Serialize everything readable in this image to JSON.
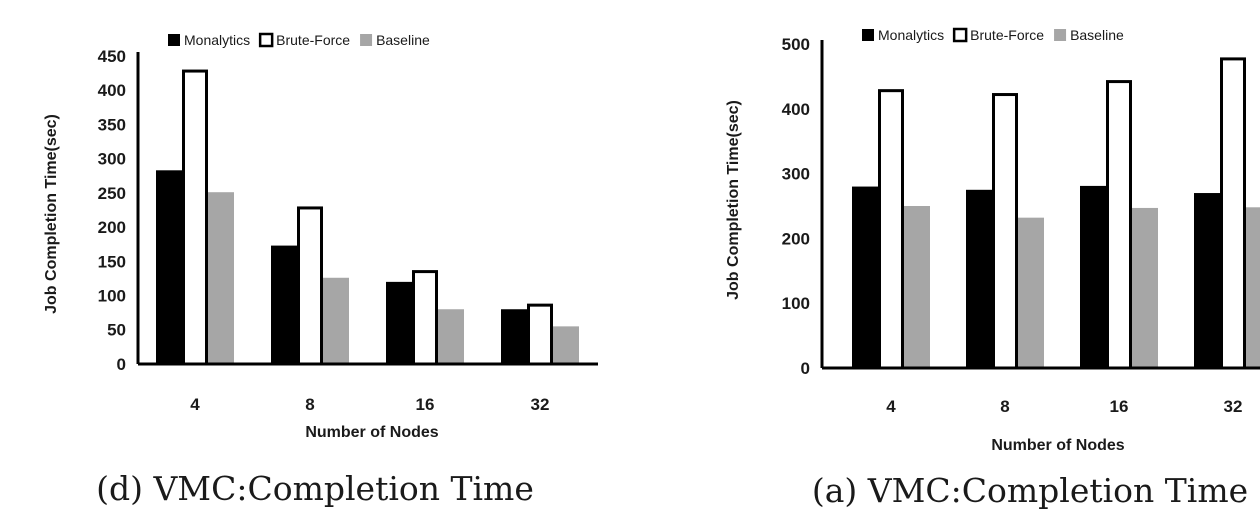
{
  "chart_data": [
    {
      "type": "bar",
      "caption": "(d) VMC:Completion Time",
      "xlabel": "Number of Nodes",
      "ylabel": "Job Completion Time(sec)",
      "categories": [
        "4",
        "8",
        "16",
        "32"
      ],
      "ylim": [
        0,
        450
      ],
      "yticks": [
        0,
        50,
        100,
        150,
        200,
        250,
        300,
        350,
        400,
        450
      ],
      "legend_position": "top",
      "series": [
        {
          "name": "Monalytics",
          "values": [
            283,
            173,
            120,
            80
          ],
          "color": "#000000"
        },
        {
          "name": "Brute-Force",
          "values": [
            428,
            228,
            135,
            86
          ],
          "color": "#ffffff"
        },
        {
          "name": "Baseline",
          "values": [
            251,
            126,
            80,
            55
          ],
          "color": "#a6a6a6"
        }
      ]
    },
    {
      "type": "bar",
      "caption": "(a) VMC:Completion Time",
      "xlabel": "Number of Nodes",
      "ylabel": "Job Completion Time(sec)",
      "categories": [
        "4",
        "8",
        "16",
        "32"
      ],
      "ylim": [
        0,
        500
      ],
      "yticks": [
        0,
        100,
        200,
        300,
        400,
        500
      ],
      "legend_position": "top",
      "series": [
        {
          "name": "Monalytics",
          "values": [
            280,
            275,
            281,
            270
          ],
          "color": "#000000"
        },
        {
          "name": "Brute-Force",
          "values": [
            428,
            422,
            442,
            477
          ],
          "color": "#ffffff"
        },
        {
          "name": "Baseline",
          "values": [
            250,
            232,
            247,
            248
          ],
          "color": "#a6a6a6"
        }
      ]
    }
  ]
}
